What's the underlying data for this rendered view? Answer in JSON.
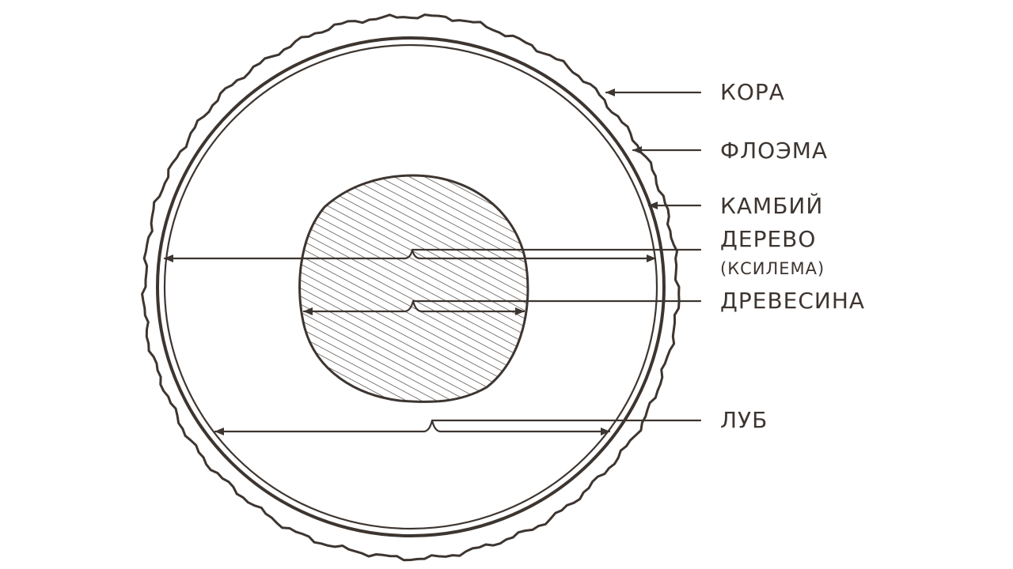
{
  "labels": {
    "bark": "КОРА",
    "phloem": "ФЛОЭМА",
    "cambium": "КАМБИЙ",
    "wood": "ДЕРЕВО",
    "xylem": "(КСИЛЕМА)",
    "heartwood": "ДРЕВЕСИНА",
    "sapwood": "ЛУБ"
  },
  "colors": {
    "ink": "#3d3530",
    "background": "#ffffff"
  }
}
